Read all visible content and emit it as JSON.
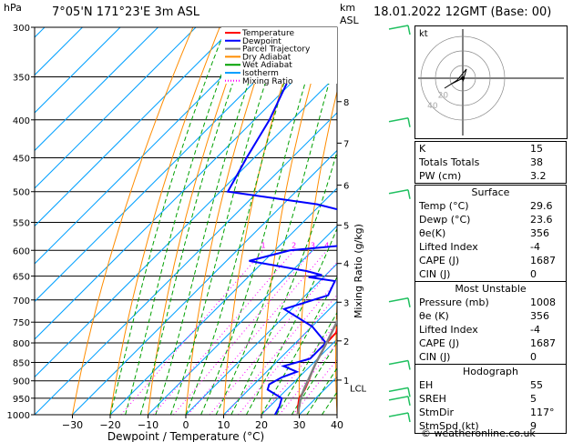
{
  "header": {
    "location": "7°05'N 171°23'E 3m ASL",
    "datetime": "18.01.2022 12GMT (Base: 00)",
    "hpa_label": "hPa",
    "km_label": "km",
    "asl_label": "ASL"
  },
  "legend": {
    "items": [
      {
        "label": "Temperature",
        "color": "#ff0000",
        "dash": "solid"
      },
      {
        "label": "Dewpoint",
        "color": "#0000ff",
        "dash": "solid"
      },
      {
        "label": "Parcel Trajectory",
        "color": "#808080",
        "dash": "solid"
      },
      {
        "label": "Dry Adiabat",
        "color": "#ff8c00",
        "dash": "solid"
      },
      {
        "label": "Wet Adiabat",
        "color": "#00a000",
        "dash": "solid"
      },
      {
        "label": "Isotherm",
        "color": "#00a0ff",
        "dash": "solid"
      },
      {
        "label": "Mixing Ratio",
        "color": "#ff00ff",
        "dash": "dotted"
      }
    ]
  },
  "chart_data": {
    "type": "skew-t",
    "xlabel": "Dewpoint / Temperature (°C)",
    "ylabel_right": "Mixing Ratio (g/kg)",
    "x_ticks": [
      -30,
      -20,
      -10,
      0,
      10,
      20,
      30,
      40
    ],
    "x_tick_labels": [
      "−30",
      "−20",
      "−10",
      "0",
      "10",
      "20",
      "30",
      "40"
    ],
    "pressure_levels": [
      300,
      350,
      400,
      450,
      500,
      550,
      600,
      650,
      700,
      750,
      800,
      850,
      900,
      950,
      1000
    ],
    "pressure_range": [
      300,
      1000
    ],
    "temperature_range_at_base": [
      -40,
      40
    ],
    "km_ticks": [
      {
        "km": "1",
        "p": 898
      },
      {
        "km": "2",
        "p": 795
      },
      {
        "km": "3",
        "p": 705
      },
      {
        "km": "4",
        "p": 625
      },
      {
        "km": "5",
        "p": 555
      },
      {
        "km": "6",
        "p": 490
      },
      {
        "km": "7",
        "p": 430
      },
      {
        "km": "8",
        "p": 378
      }
    ],
    "lcl": {
      "label": "LCL",
      "p": 920
    },
    "mixing_ratio_values": [
      1,
      2,
      3,
      4,
      6,
      8,
      10,
      15,
      20,
      25
    ],
    "mixing_ratio_labels": [
      "1",
      "2",
      "3",
      "4",
      "6",
      "8",
      "10",
      "15",
      "20",
      "25"
    ],
    "series": [
      {
        "name": "Temperature",
        "color": "#ff0000",
        "points": [
          [
            1000,
            29.6
          ],
          [
            975,
            27.5
          ],
          [
            950,
            25.6
          ],
          [
            925,
            24.8
          ],
          [
            900,
            23.5
          ],
          [
            875,
            22.0
          ],
          [
            850,
            20.6
          ],
          [
            825,
            19.5
          ],
          [
            800,
            18.2
          ],
          [
            775,
            18.0
          ],
          [
            750,
            16.0
          ],
          [
            725,
            13.6
          ],
          [
            700,
            11.6
          ],
          [
            675,
            9.4
          ],
          [
            650,
            7.0
          ],
          [
            625,
            4.8
          ],
          [
            600,
            2.4
          ],
          [
            575,
            0.0
          ],
          [
            550,
            -2.6
          ],
          [
            500,
            -7.2
          ],
          [
            450,
            -13.6
          ],
          [
            400,
            -19.6
          ],
          [
            350,
            -27.6
          ],
          [
            300,
            -36.0
          ]
        ]
      },
      {
        "name": "Dewpoint",
        "color": "#0000ff",
        "points": [
          [
            1000,
            23.6
          ],
          [
            975,
            22.6
          ],
          [
            950,
            21.0
          ],
          [
            925,
            15.0
          ],
          [
            910,
            14.0
          ],
          [
            890,
            15.5
          ],
          [
            875,
            18.0
          ],
          [
            860,
            13.0
          ],
          [
            840,
            18.0
          ],
          [
            820,
            18.0
          ],
          [
            800,
            18.0
          ],
          [
            760,
            10.0
          ],
          [
            720,
            -2.0
          ],
          [
            690,
            6.0
          ],
          [
            660,
            4.0
          ],
          [
            652,
            -4.0
          ],
          [
            648,
            -1.0
          ],
          [
            640,
            -6.0
          ],
          [
            620,
            -24.0
          ],
          [
            600,
            -16.0
          ],
          [
            590,
            -2.0
          ],
          [
            560,
            -2.0
          ],
          [
            540,
            -5.0
          ],
          [
            520,
            -21.0
          ],
          [
            500,
            -48.0
          ],
          [
            450,
            -52.0
          ],
          [
            400,
            -56.0
          ],
          [
            350,
            -62.0
          ],
          [
            300,
            -70.0
          ]
        ]
      },
      {
        "name": "Parcel Trajectory",
        "color": "#808080",
        "points": [
          [
            1000,
            29.6
          ],
          [
            950,
            26.0
          ],
          [
            920,
            24.3
          ],
          [
            900,
            23.3
          ],
          [
            850,
            20.6
          ],
          [
            800,
            18.2
          ],
          [
            750,
            15.4
          ],
          [
            700,
            12.3
          ],
          [
            650,
            9.0
          ],
          [
            600,
            5.3
          ],
          [
            550,
            1.0
          ],
          [
            500,
            -4.0
          ],
          [
            450,
            -9.8
          ],
          [
            400,
            -16.6
          ],
          [
            350,
            -25.0
          ],
          [
            300,
            -34.5
          ]
        ]
      }
    ],
    "wind_barbs": [
      {
        "p": 1000
      },
      {
        "p": 950
      },
      {
        "p": 925
      },
      {
        "p": 850
      },
      {
        "p": 700
      },
      {
        "p": 500
      },
      {
        "p": 400
      },
      {
        "p": 300
      }
    ]
  },
  "hodograph": {
    "unit_label": "kt",
    "ring_labels": [
      "20",
      "40"
    ]
  },
  "table_top": {
    "rows": [
      {
        "label": "K",
        "value": "15"
      },
      {
        "label": "Totals Totals",
        "value": "38"
      },
      {
        "label": "PW (cm)",
        "value": "3.2"
      }
    ]
  },
  "table_surface": {
    "title": "Surface",
    "rows": [
      {
        "label": "Temp (°C)",
        "value": "29.6"
      },
      {
        "label": "Dewp (°C)",
        "value": "23.6"
      },
      {
        "label": "θe(K)",
        "value": "356"
      },
      {
        "label": "Lifted Index",
        "value": "-4"
      },
      {
        "label": "CAPE (J)",
        "value": "1687"
      },
      {
        "label": "CIN (J)",
        "value": "0"
      }
    ]
  },
  "table_unstable": {
    "title": "Most Unstable",
    "rows": [
      {
        "label": "Pressure (mb)",
        "value": "1008"
      },
      {
        "label": "θe (K)",
        "value": "356"
      },
      {
        "label": "Lifted Index",
        "value": "-4"
      },
      {
        "label": "CAPE (J)",
        "value": "1687"
      },
      {
        "label": "CIN (J)",
        "value": "0"
      }
    ]
  },
  "table_hodograph": {
    "title": "Hodograph",
    "rows": [
      {
        "label": "EH",
        "value": "55"
      },
      {
        "label": "SREH",
        "value": "5"
      },
      {
        "label": "StmDir",
        "value": "117°"
      },
      {
        "label": "StmSpd (kt)",
        "value": "9"
      }
    ]
  },
  "footer": {
    "credit": "© weatheronline.co.uk"
  }
}
